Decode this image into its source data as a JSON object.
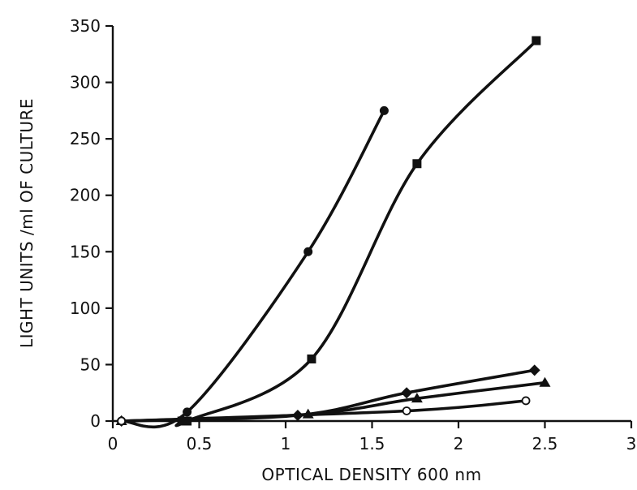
{
  "chart_data": {
    "type": "line",
    "xlabel": "OPTICAL DENSITY  600 nm",
    "ylabel": "LIGHT UNITS /ml OF CULTURE",
    "xlim": [
      0,
      3
    ],
    "ylim": [
      0,
      350
    ],
    "xticks": [
      0,
      0.5,
      1,
      1.5,
      2,
      2.5,
      3
    ],
    "xtick_labels": [
      "0",
      "0.5",
      "1",
      "1.5",
      "2",
      "2.5",
      "3"
    ],
    "yticks": [
      0,
      50,
      100,
      150,
      200,
      250,
      300,
      350
    ],
    "ytick_labels": [
      "0",
      "50",
      "100",
      "150",
      "200",
      "250",
      "300",
      "350"
    ],
    "grid": false,
    "legend": "none",
    "color": "#111111",
    "series": [
      {
        "marker": "circle-filled",
        "x": [
          0.05,
          0.43,
          1.13,
          1.57
        ],
        "y": [
          0,
          8,
          150,
          275
        ]
      },
      {
        "marker": "square-filled",
        "x": [
          0.4,
          0.43,
          1.15,
          1.76,
          2.45
        ],
        "y": [
          0,
          0,
          55,
          228,
          337
        ]
      },
      {
        "marker": "diamond-filled",
        "x": [
          0.05,
          1.07,
          1.7,
          2.44
        ],
        "y": [
          0,
          5,
          25,
          45
        ]
      },
      {
        "marker": "triangle-filled",
        "x": [
          0.05,
          1.13,
          1.76,
          2.5
        ],
        "y": [
          0,
          6,
          20,
          34
        ]
      },
      {
        "marker": "circle-open",
        "x": [
          0.05,
          1.7,
          2.39
        ],
        "y": [
          0,
          9,
          18
        ]
      }
    ]
  }
}
